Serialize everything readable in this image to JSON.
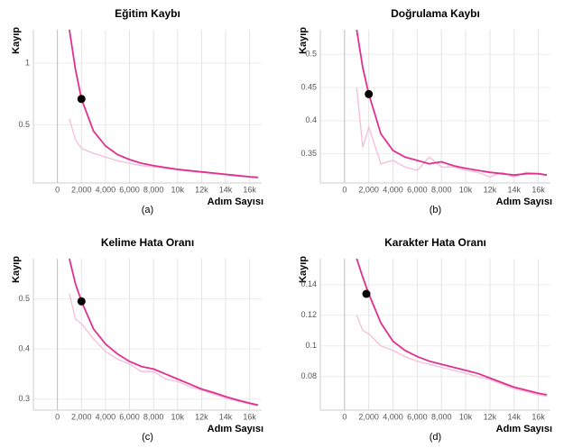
{
  "chart_data": [
    {
      "type": "line",
      "title": "Eğitim Kaybı",
      "y_label": "Kayıp",
      "x_label": "Adım Sayısı",
      "caption": "(a)",
      "xlim": [
        -2000,
        17000
      ],
      "ylim": [
        0.03,
        1.27
      ],
      "xticks": [
        0,
        {
          "value": 2000,
          "label": "2,000"
        },
        {
          "value": 4000,
          "label": "4,000"
        },
        {
          "value": 6000,
          "label": "6,000"
        },
        {
          "value": 8000,
          "label": "8,000"
        },
        {
          "value": 10000,
          "label": "10k"
        },
        {
          "value": 12000,
          "label": "12k"
        },
        {
          "value": 14000,
          "label": "14k"
        },
        {
          "value": 16000,
          "label": "16k"
        }
      ],
      "yticks": [
        0.5,
        1
      ],
      "grid": true,
      "x": [
        1000,
        1500,
        2000,
        3000,
        4000,
        5000,
        6000,
        7000,
        8000,
        9000,
        10000,
        11000,
        12000,
        13000,
        14000,
        15000,
        16000,
        16700
      ],
      "series": [
        {
          "color": "#f6bcd8",
          "values": [
            0.55,
            0.38,
            0.31,
            0.27,
            0.24,
            0.21,
            0.19,
            0.17,
            0.16,
            0.15,
            0.135,
            0.125,
            0.115,
            0.105,
            0.095,
            0.085,
            0.078,
            0.073
          ]
        },
        {
          "color": "#e0308f",
          "values": [
            1.27,
            0.95,
            0.71,
            0.45,
            0.33,
            0.26,
            0.22,
            0.19,
            0.17,
            0.155,
            0.14,
            0.13,
            0.12,
            0.11,
            0.1,
            0.09,
            0.08,
            0.075
          ]
        }
      ],
      "highlight": {
        "x": 2000,
        "y": 0.71
      }
    },
    {
      "type": "line",
      "title": "Doğrulama Kaybı",
      "y_label": "Kayıp",
      "x_label": "Adım Sayısı",
      "caption": "(b)",
      "xlim": [
        -2000,
        17000
      ],
      "ylim": [
        0.306,
        0.537
      ],
      "xticks": [
        0,
        {
          "value": 2000,
          "label": "2,000"
        },
        {
          "value": 4000,
          "label": "4,000"
        },
        {
          "value": 6000,
          "label": "6,000"
        },
        {
          "value": 8000,
          "label": "8,000"
        },
        {
          "value": 10000,
          "label": "10k"
        },
        {
          "value": 12000,
          "label": "12k"
        },
        {
          "value": 14000,
          "label": "14k"
        },
        {
          "value": 16000,
          "label": "16k"
        }
      ],
      "yticks": [
        0.35,
        0.4,
        0.45,
        0.5
      ],
      "grid": true,
      "x": [
        1000,
        1500,
        2000,
        3000,
        4000,
        5000,
        6000,
        7000,
        8000,
        9000,
        10000,
        11000,
        12000,
        13000,
        14000,
        15000,
        16000,
        16700
      ],
      "series": [
        {
          "color": "#f6bcd8",
          "values": [
            0.45,
            0.36,
            0.39,
            0.335,
            0.34,
            0.33,
            0.325,
            0.345,
            0.33,
            0.33,
            0.325,
            0.322,
            0.315,
            0.322,
            0.315,
            0.322,
            0.32,
            0.318
          ]
        },
        {
          "color": "#e0308f",
          "values": [
            0.537,
            0.48,
            0.44,
            0.38,
            0.355,
            0.345,
            0.34,
            0.335,
            0.338,
            0.332,
            0.328,
            0.325,
            0.322,
            0.32,
            0.318,
            0.32,
            0.32,
            0.318
          ]
        }
      ],
      "highlight": {
        "x": 2000,
        "y": 0.44
      }
    },
    {
      "type": "line",
      "title": "Kelime Hata Oranı",
      "y_label": "Kayıp",
      "x_label": "Adım Sayısı",
      "caption": "(c)",
      "xlim": [
        -2000,
        17000
      ],
      "ylim": [
        0.278,
        0.58
      ],
      "xticks": [
        0,
        {
          "value": 2000,
          "label": "2,000"
        },
        {
          "value": 4000,
          "label": "4,000"
        },
        {
          "value": 6000,
          "label": "6,000"
        },
        {
          "value": 8000,
          "label": "8,000"
        },
        {
          "value": 10000,
          "label": "10k"
        },
        {
          "value": 12000,
          "label": "12k"
        },
        {
          "value": 14000,
          "label": "14k"
        },
        {
          "value": 16000,
          "label": "16k"
        }
      ],
      "yticks": [
        0.3,
        0.4,
        0.5
      ],
      "grid": true,
      "x": [
        1000,
        1500,
        2000,
        3000,
        4000,
        5000,
        6000,
        7000,
        8000,
        9000,
        10000,
        11000,
        12000,
        13000,
        14000,
        15000,
        16000,
        16700
      ],
      "series": [
        {
          "color": "#f6bcd8",
          "values": [
            0.51,
            0.46,
            0.45,
            0.42,
            0.395,
            0.38,
            0.37,
            0.355,
            0.355,
            0.34,
            0.335,
            0.325,
            0.318,
            0.31,
            0.302,
            0.296,
            0.29,
            0.287
          ]
        },
        {
          "color": "#e0308f",
          "values": [
            0.58,
            0.53,
            0.495,
            0.44,
            0.41,
            0.39,
            0.375,
            0.365,
            0.36,
            0.35,
            0.34,
            0.33,
            0.32,
            0.313,
            0.305,
            0.298,
            0.292,
            0.288
          ]
        }
      ],
      "highlight": {
        "x": 2000,
        "y": 0.495
      }
    },
    {
      "type": "line",
      "title": "Karakter Hata Oranı",
      "y_label": "Kayıp",
      "x_label": "Adım Sayısı",
      "caption": "(d)",
      "xlim": [
        -2000,
        17000
      ],
      "ylim": [
        0.058,
        0.157
      ],
      "xticks": [
        0,
        {
          "value": 2000,
          "label": "2,000"
        },
        {
          "value": 4000,
          "label": "4,000"
        },
        {
          "value": 6000,
          "label": "6,000"
        },
        {
          "value": 8000,
          "label": "8,000"
        },
        {
          "value": 10000,
          "label": "10k"
        },
        {
          "value": 12000,
          "label": "12k"
        },
        {
          "value": 14000,
          "label": "14k"
        },
        {
          "value": 16000,
          "label": "16k"
        }
      ],
      "yticks": [
        0.08,
        0.1,
        0.12,
        0.14
      ],
      "grid": true,
      "x": [
        1000,
        1500,
        2000,
        3000,
        4000,
        5000,
        6000,
        7000,
        8000,
        9000,
        10000,
        11000,
        12000,
        13000,
        14000,
        15000,
        16000,
        16700
      ],
      "series": [
        {
          "color": "#f6bcd8",
          "values": [
            0.12,
            0.11,
            0.108,
            0.1,
            0.097,
            0.093,
            0.09,
            0.088,
            0.086,
            0.084,
            0.082,
            0.08,
            0.078,
            0.075,
            0.072,
            0.07,
            0.068,
            0.067
          ]
        },
        {
          "color": "#e0308f",
          "values": [
            0.157,
            0.145,
            0.134,
            0.115,
            0.103,
            0.097,
            0.093,
            0.09,
            0.088,
            0.086,
            0.084,
            0.082,
            0.079,
            0.076,
            0.073,
            0.071,
            0.069,
            0.068
          ]
        }
      ],
      "highlight": {
        "x": 1800,
        "y": 0.134
      }
    }
  ]
}
